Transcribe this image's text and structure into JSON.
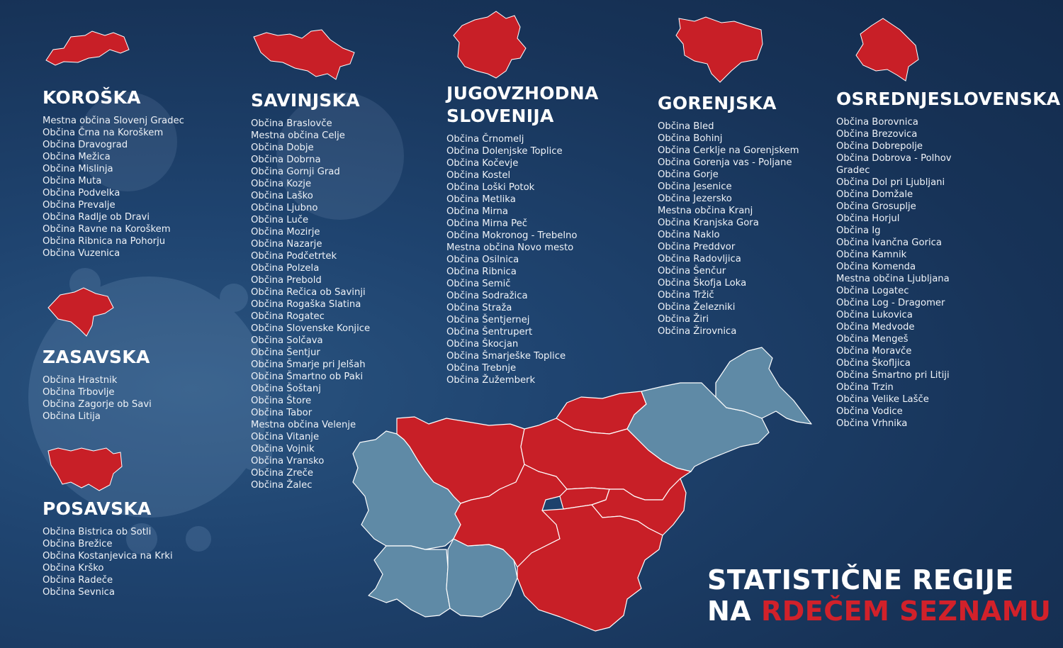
{
  "colors": {
    "background": "#1c3a63",
    "red_list": "#c81f27",
    "other": "#5f8aa6",
    "text": "#ffffff"
  },
  "regions": [
    {
      "id": "koroska",
      "title": "KOROŠKA",
      "on_red_list": true,
      "municipalities": [
        "Mestna občina Slovenj Gradec",
        "Občina Črna na Koroškem",
        "Občina Dravograd",
        "Občina Mežica",
        "Občina Mislinja",
        "Občina Muta",
        "Občina Podvelka",
        "Občina Prevalje",
        "Občina Radlje ob Dravi",
        "Občina Ravne na Koroškem",
        "Občina Ribnica na Pohorju",
        "Občina Vuzenica"
      ]
    },
    {
      "id": "zasavska",
      "title": "ZASAVSKA",
      "on_red_list": true,
      "municipalities": [
        "Občina Hrastnik",
        "Občina Trbovlje",
        "Občina Zagorje ob Savi",
        "Občina Litija"
      ]
    },
    {
      "id": "posavska",
      "title": "POSAVSKA",
      "on_red_list": true,
      "municipalities": [
        "Občina Bistrica ob Sotli",
        "Občina Brežice",
        "Občina Kostanjevica na Krki",
        "Občina Krško",
        "Občina Radeče",
        "Občina Sevnica"
      ]
    },
    {
      "id": "savinjska",
      "title": "SAVINJSKA",
      "on_red_list": true,
      "municipalities": [
        "Občina Braslovče",
        "Mestna občina Celje",
        "Občina Dobje",
        "Občina Dobrna",
        "Občina Gornji Grad",
        "Občina Kozje",
        "Občina Laško",
        "Občina Ljubno",
        "Občina Luče",
        "Občina Mozirje",
        "Občina Nazarje",
        "Občina Podčetrtek",
        "Občina Polzela",
        "Občina Prebold",
        "Občina Rečica ob Savinji",
        "Občina Rogaška Slatina",
        "Občina Rogatec",
        "Občina Slovenske Konjice",
        "Občina Solčava",
        "Občina Šentjur",
        "Občina Šmarje pri Jelšah",
        "Občina Šmartno ob Paki",
        "Občina Šoštanj",
        "Občina Štore",
        "Občina Tabor",
        "Mestna občina Velenje",
        "Občina Vitanje",
        "Občina Vojnik",
        "Občina Vransko",
        "Občina Zreče",
        "Občina Žalec"
      ]
    },
    {
      "id": "jugovzhodna",
      "title": "JUGOVZHODNA\nSLOVENIJA",
      "on_red_list": true,
      "municipalities": [
        "Občina Črnomelj",
        "Občina Dolenjske Toplice",
        "Občina Kočevje",
        "Občina Kostel",
        "Občina Loški Potok",
        "Občina Metlika",
        "Občina Mirna",
        "Občina Mirna Peč",
        "Občina Mokronog - Trebelno",
        "Mestna občina Novo mesto",
        "Občina Osilnica",
        "Občina Ribnica",
        "Občina Semič",
        "Občina Sodražica",
        "Občina Straža",
        "Občina Šentjernej",
        "Občina Šentrupert",
        "Občina Škocjan",
        "Občina Šmarješke Toplice",
        "Občina Trebnje",
        "Občina Žužemberk"
      ]
    },
    {
      "id": "gorenjska",
      "title": "GORENJSKA",
      "on_red_list": true,
      "municipalities": [
        "Občina Bled",
        "Občina Bohinj",
        "Občina Cerklje na Gorenjskem",
        "Občina Gorenja vas - Poljane",
        "Občina Gorje",
        "Občina Jesenice",
        "Občina Jezersko",
        "Mestna občina Kranj",
        "Občina Kranjska Gora",
        "Občina Naklo",
        "Občina Preddvor",
        "Občina Radovljica",
        "Občina Šenčur",
        "Občina Škofja Loka",
        "Občina Tržič",
        "Občina Železniki",
        "Občina Žiri",
        "Občina Žirovnica"
      ]
    },
    {
      "id": "osrednjeslovenska",
      "title": "OSREDNJESLOVENSKA",
      "on_red_list": true,
      "municipalities": [
        "Občina Borovnica",
        "Občina Brezovica",
        "Občina Dobrepolje",
        "Občina Dobrova - Polhov Gradec",
        "Občina Dol pri Ljubljani",
        "Občina Domžale",
        "Občina Grosuplje",
        "Občina Horjul",
        "Občina Ig",
        "Občina Ivančna Gorica",
        "Občina Kamnik",
        "Občina Komenda",
        "Mestna občina Ljubljana",
        "Občina Logatec",
        "Občina Log - Dragomer",
        "Občina Lukovica",
        "Občina Medvode",
        "Občina Mengeš",
        "Občina Moravče",
        "Občina Škofljica",
        "Občina Šmartno pri Litiji",
        "Občina Trzin",
        "Občina Velike Lašče",
        "Občina Vodice",
        "Občina Vrhnika"
      ]
    }
  ],
  "map": {
    "name": "slovenia-statistical-regions-map"
  },
  "title": {
    "line1": "STATISTIČNE REGIJE",
    "line2_white": "NA ",
    "line2_red": "RDEČEM SEZNAMU"
  }
}
